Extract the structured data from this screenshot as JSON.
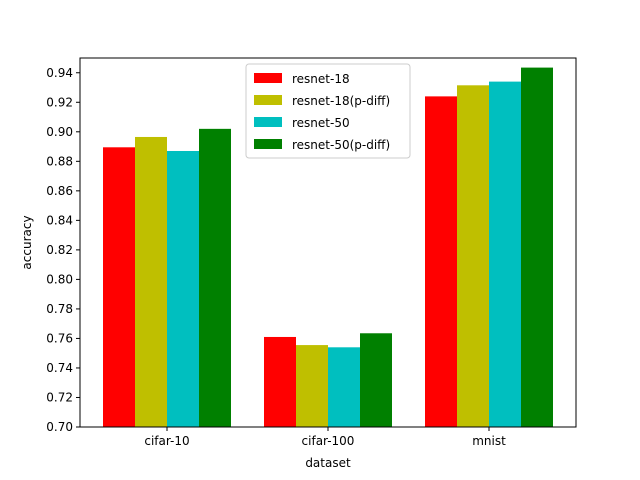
{
  "chart_data": {
    "type": "bar",
    "categories": [
      "cifar-10",
      "cifar-100",
      "mnist"
    ],
    "series": [
      {
        "name": "resnet-18",
        "color": "#ff0000",
        "values": [
          0.8895,
          0.761,
          0.924
        ]
      },
      {
        "name": "resnet-18(p-diff)",
        "color": "#bfbf00",
        "values": [
          0.8965,
          0.7555,
          0.9315
        ]
      },
      {
        "name": "resnet-50",
        "color": "#00bfbf",
        "values": [
          0.887,
          0.754,
          0.934
        ]
      },
      {
        "name": "resnet-50(p-diff)",
        "color": "#008000",
        "values": [
          0.902,
          0.7635,
          0.9435
        ]
      }
    ],
    "xlabel": "dataset",
    "ylabel": "accuracy",
    "ylim": [
      0.7,
      0.95
    ],
    "yticks": [
      "0.70",
      "0.72",
      "0.74",
      "0.76",
      "0.78",
      "0.80",
      "0.82",
      "0.84",
      "0.86",
      "0.88",
      "0.90",
      "0.92",
      "0.94"
    ],
    "grid": false,
    "legend_position": "top-center"
  }
}
